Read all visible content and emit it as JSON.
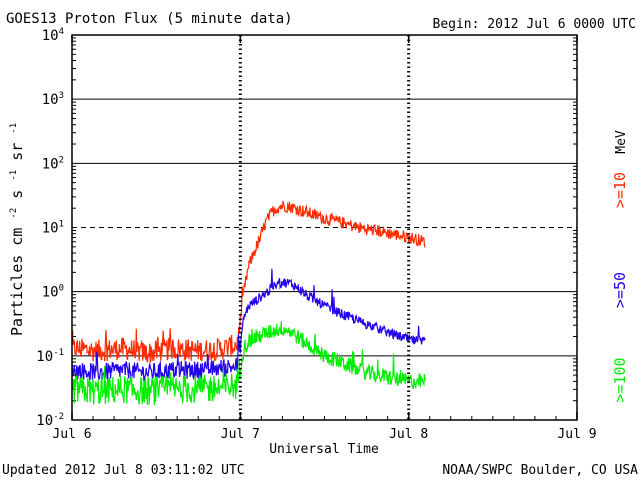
{
  "header": {
    "title": "GOES13 Proton Flux (5 minute data)",
    "begin": "Begin: 2012 Jul 6 0000 UTC"
  },
  "footer": {
    "updated": "Updated 2012 Jul  8 03:11:02 UTC",
    "credit": "NOAA/SWPC Boulder, CO USA"
  },
  "colors": {
    "ge10": "#ff2a00",
    "ge50": "#2200ee",
    "ge100": "#00ee00",
    "axes": "#000000"
  },
  "chart_data": {
    "type": "line",
    "title": "GOES13 Proton Flux (5 minute data)",
    "xlabel": "Universal Time",
    "ylabel_parts": {
      "a": "Particles cm",
      "a_sup": "-2",
      "b": "s",
      "b_sup": "-1",
      "c": "sr",
      "c_sup": "-1"
    },
    "x_unit": "days since 2012 Jul 6 0000 UTC",
    "xlim": [
      0,
      3
    ],
    "x_ticks": [
      {
        "v": 0,
        "label": "Jul 6"
      },
      {
        "v": 1,
        "label": "Jul 7"
      },
      {
        "v": 2,
        "label": "Jul 8"
      },
      {
        "v": 3,
        "label": "Jul 9"
      }
    ],
    "y_scale": "log",
    "ylim": [
      0.01,
      10000
    ],
    "y_ticks": [
      {
        "exp": -2,
        "label": "10",
        "sup": "-2"
      },
      {
        "exp": -1,
        "label": "10",
        "sup": "-1"
      },
      {
        "exp": 0,
        "label": "10",
        "sup": "0"
      },
      {
        "exp": 1,
        "label": "10",
        "sup": "1"
      },
      {
        "exp": 2,
        "label": "10",
        "sup": "2"
      },
      {
        "exp": 3,
        "label": "10",
        "sup": "3"
      },
      {
        "exp": 4,
        "label": "10",
        "sup": "4"
      }
    ],
    "dashed_level": 10,
    "legend_unit": "MeV",
    "legend_position": "right",
    "series": [
      {
        "name": ">=10",
        "color": "#ff2a00",
        "x": [
          0,
          0.15,
          0.3,
          0.45,
          0.6,
          0.75,
          0.9,
          0.98,
          1.0,
          1.02,
          1.05,
          1.08,
          1.12,
          1.15,
          1.18,
          1.2,
          1.25,
          1.3,
          1.35,
          1.4,
          1.5,
          1.6,
          1.7,
          1.8,
          1.9,
          2.0,
          2.05,
          2.1
        ],
        "y": [
          0.13,
          0.12,
          0.13,
          0.11,
          0.13,
          0.12,
          0.13,
          0.15,
          0.3,
          1.0,
          2.5,
          4.0,
          7.0,
          12,
          16,
          19,
          22,
          21,
          19,
          17,
          14,
          12,
          10,
          9,
          8,
          7,
          6.5,
          6
        ]
      },
      {
        "name": ">=50",
        "color": "#2200ee",
        "x": [
          0,
          0.15,
          0.3,
          0.45,
          0.6,
          0.75,
          0.9,
          0.98,
          1.0,
          1.02,
          1.05,
          1.1,
          1.15,
          1.2,
          1.25,
          1.3,
          1.35,
          1.4,
          1.5,
          1.6,
          1.7,
          1.8,
          1.9,
          2.0,
          2.1
        ],
        "y": [
          0.06,
          0.055,
          0.06,
          0.055,
          0.06,
          0.06,
          0.065,
          0.07,
          0.15,
          0.4,
          0.6,
          0.75,
          0.95,
          1.2,
          1.4,
          1.35,
          1.1,
          0.85,
          0.6,
          0.45,
          0.35,
          0.28,
          0.22,
          0.18,
          0.16
        ]
      },
      {
        "name": ">=100",
        "color": "#00ee00",
        "x": [
          0,
          0.15,
          0.3,
          0.45,
          0.6,
          0.75,
          0.9,
          0.98,
          1.0,
          1.02,
          1.05,
          1.1,
          1.15,
          1.2,
          1.25,
          1.3,
          1.35,
          1.4,
          1.5,
          1.6,
          1.7,
          1.8,
          1.9,
          2.0,
          2.1
        ],
        "y": [
          0.03,
          0.028,
          0.03,
          0.028,
          0.03,
          0.03,
          0.032,
          0.035,
          0.07,
          0.13,
          0.17,
          0.2,
          0.22,
          0.25,
          0.27,
          0.24,
          0.19,
          0.15,
          0.1,
          0.08,
          0.06,
          0.05,
          0.045,
          0.04,
          0.04
        ]
      }
    ]
  }
}
